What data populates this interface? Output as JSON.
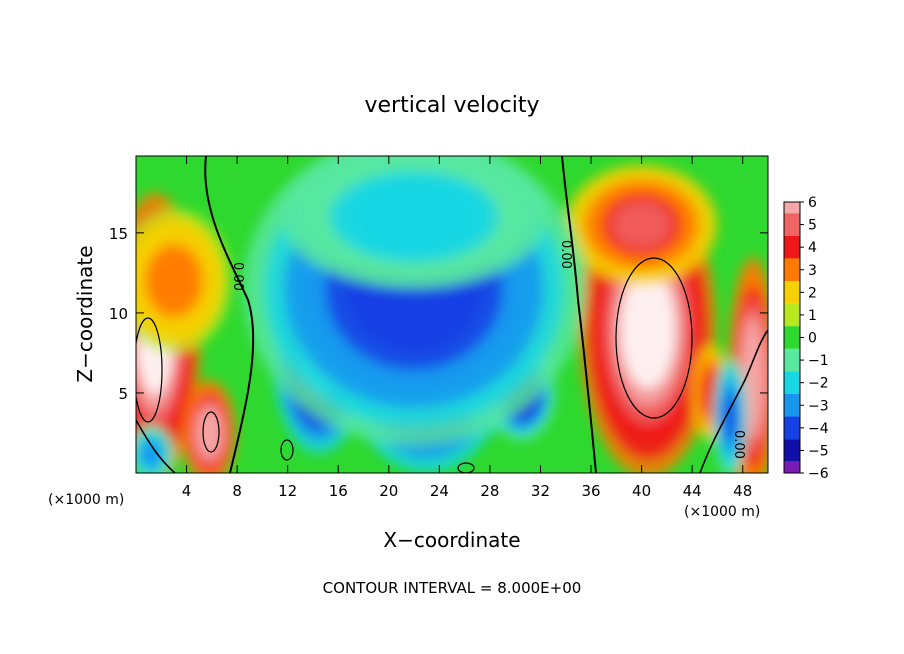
{
  "chart_data": {
    "type": "heatmap",
    "title": "vertical velocity",
    "xlabel": "X−coordinate",
    "ylabel": "Z−coordinate",
    "x_unit_left": "(×1000 m)",
    "x_unit_right": "(×1000 m)",
    "footer": "CONTOUR INTERVAL = 8.000E+00",
    "xlim": [
      0,
      50
    ],
    "ylim": [
      0,
      19.8
    ],
    "x_ticks": [
      4,
      8,
      12,
      16,
      20,
      24,
      28,
      32,
      36,
      40,
      44,
      48
    ],
    "x_tick_labels": [
      "4",
      "8",
      "12",
      "16",
      "20",
      "24",
      "28",
      "32",
      "36",
      "40",
      "44",
      "48"
    ],
    "y_ticks": [
      5,
      10,
      15
    ],
    "y_tick_labels": [
      "5",
      "10",
      "15"
    ],
    "colorbar": {
      "ticks": [
        6,
        5,
        4,
        3,
        2,
        1,
        0,
        -1,
        -2,
        -3,
        -4,
        -5,
        -6
      ],
      "labels": [
        "6",
        "5",
        "4",
        "3",
        "2",
        "1",
        "0",
        "−1",
        "−2",
        "−3",
        "−4",
        "−5",
        "−6"
      ],
      "colors": [
        "#f4a8a8",
        "#f06464",
        "#ef1818",
        "#ff7a00",
        "#f6d000",
        "#b8e81e",
        "#2ed82e",
        "#58e8a0",
        "#18d6e4",
        "#1896ee",
        "#1440e4",
        "#1010a8",
        "#7a1ab4"
      ]
    },
    "contour_labels": [
      "0.00",
      "0.00",
      "0.00",
      "0.00"
    ],
    "background_value": 0.5,
    "features": [
      {
        "x": 1.5,
        "z": 8.5,
        "value": 7,
        "rx": 2.4,
        "rz": 6.0
      },
      {
        "x": 5.8,
        "z": 2.5,
        "value": 6.5,
        "rx": 1.4,
        "rz": 2.2
      },
      {
        "x": 3.0,
        "z": 12.0,
        "value": 3,
        "rx": 3.0,
        "rz": 3.0
      },
      {
        "x": 40.5,
        "z": 9.0,
        "value": 7,
        "rx": 3.6,
        "rz": 6.2
      },
      {
        "x": 40.0,
        "z": 15.5,
        "value": 4.5,
        "rx": 4.0,
        "rz": 2.5
      },
      {
        "x": 48.8,
        "z": 6.0,
        "value": 6.5,
        "rx": 1.3,
        "rz": 5.0
      },
      {
        "x": 45.5,
        "z": 5.0,
        "value": 4,
        "rx": 1.0,
        "rz": 2.0
      },
      {
        "x": 14.5,
        "z": 7.5,
        "value": -7,
        "rx": 2.5,
        "rz": 4.2
      },
      {
        "x": 23.0,
        "z": 7.5,
        "value": -7,
        "rx": 4.5,
        "rz": 5.0
      },
      {
        "x": 28.0,
        "z": 8.5,
        "value": -7,
        "rx": 1.8,
        "rz": 4.0
      },
      {
        "x": 30.5,
        "z": 5.0,
        "value": -5,
        "rx": 1.8,
        "rz": 2.0
      },
      {
        "x": 22.0,
        "z": 11.5,
        "value": -4.5,
        "rx": 9.0,
        "rz": 6.5
      },
      {
        "x": 22.0,
        "z": 16.0,
        "value": -2.5,
        "rx": 7.0,
        "rz": 3.0
      },
      {
        "x": 47.0,
        "z": 3.5,
        "value": -4,
        "rx": 0.9,
        "rz": 2.5
      },
      {
        "x": 1.2,
        "z": 1.2,
        "value": -3,
        "rx": 1.2,
        "rz": 1.2
      }
    ]
  }
}
